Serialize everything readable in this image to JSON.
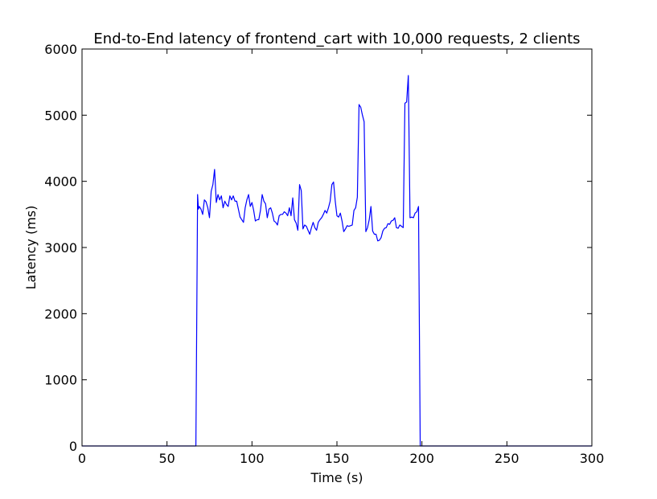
{
  "chart_data": {
    "type": "line",
    "title": "End-to-End latency of frontend_cart with 10,000 requests, 2 clients",
    "xlabel": "Time (s)",
    "ylabel": "Latency (ms)",
    "xlim": [
      0,
      300
    ],
    "ylim": [
      0,
      6000
    ],
    "xticks": [
      0,
      50,
      100,
      150,
      200,
      250,
      300
    ],
    "yticks": [
      0,
      1000,
      2000,
      3000,
      4000,
      5000,
      6000
    ],
    "grid": false,
    "legend": "none",
    "line_color": "#0000ff",
    "series": [
      {
        "x": [
          0,
          67,
          68,
          68.5,
          69,
          70,
          71,
          72,
          73,
          74,
          75,
          76,
          77,
          78,
          79,
          80,
          81,
          82,
          83,
          84,
          85,
          86,
          87,
          88,
          89,
          90,
          91,
          92,
          93,
          94,
          95,
          96,
          97,
          98,
          99,
          100,
          101,
          102,
          103,
          104,
          105,
          106,
          107,
          108,
          109,
          110,
          111,
          112,
          113,
          114,
          115,
          116,
          117,
          118,
          119,
          120,
          121,
          122,
          123,
          124,
          125,
          126,
          127,
          128,
          129,
          130,
          131,
          132,
          133,
          134,
          135,
          136,
          137,
          138,
          139,
          140,
          141,
          142,
          143,
          144,
          145,
          146,
          147,
          148,
          149,
          150,
          151,
          152,
          153,
          154,
          155,
          156,
          157,
          158,
          159,
          160,
          161,
          162,
          163,
          164,
          165,
          166,
          167,
          168,
          169,
          170,
          171,
          172,
          173,
          174,
          175,
          176,
          177,
          178,
          179,
          180,
          181,
          182,
          183,
          184,
          185,
          186,
          187,
          188,
          189,
          190,
          191,
          192,
          193,
          194,
          195,
          196,
          197,
          198,
          199,
          300
        ],
        "y": [
          0,
          0,
          3800,
          3580,
          3620,
          3580,
          3500,
          3720,
          3690,
          3600,
          3450,
          3850,
          3950,
          4180,
          3680,
          3800,
          3720,
          3780,
          3600,
          3700,
          3650,
          3620,
          3780,
          3720,
          3780,
          3700,
          3700,
          3580,
          3460,
          3420,
          3380,
          3600,
          3720,
          3800,
          3620,
          3680,
          3560,
          3400,
          3420,
          3420,
          3560,
          3800,
          3700,
          3660,
          3450,
          3580,
          3600,
          3520,
          3400,
          3380,
          3340,
          3480,
          3500,
          3500,
          3540,
          3520,
          3480,
          3600,
          3480,
          3750,
          3420,
          3370,
          3260,
          3950,
          3860,
          3280,
          3340,
          3320,
          3260,
          3200,
          3300,
          3380,
          3300,
          3260,
          3380,
          3420,
          3450,
          3500,
          3560,
          3520,
          3600,
          3700,
          3950,
          3990,
          3700,
          3480,
          3460,
          3520,
          3400,
          3240,
          3280,
          3330,
          3320,
          3330,
          3340,
          3560,
          3600,
          3760,
          5160,
          5120,
          5000,
          4900,
          3240,
          3300,
          3420,
          3620,
          3250,
          3200,
          3200,
          3100,
          3110,
          3150,
          3250,
          3290,
          3300,
          3360,
          3350,
          3400,
          3410,
          3450,
          3300,
          3290,
          3340,
          3320,
          3300,
          5180,
          5200,
          5600,
          3450,
          3460,
          3450,
          3520,
          3540,
          3620,
          0,
          0
        ]
      }
    ]
  }
}
